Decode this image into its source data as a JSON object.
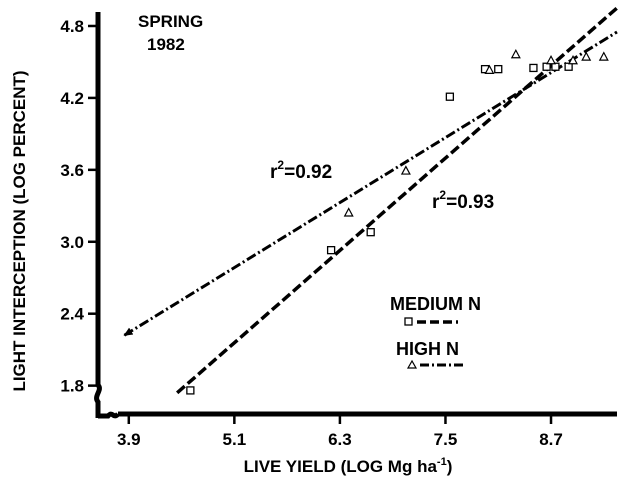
{
  "chart_data": {
    "type": "scatter",
    "annotation_title": [
      "SPRING",
      "1982"
    ],
    "xlabel": "LIVE YIELD (LOG Mg ha",
    "xlabel_sup": "-1",
    "xlabel_end": ")",
    "ylabel": "LIGHT INTERCEPTION (LOG PERCENT)",
    "xlim": [
      3.55,
      9.45
    ],
    "ylim": [
      1.58,
      4.95
    ],
    "x_ticks": [
      3.9,
      5.1,
      6.3,
      7.5,
      8.7
    ],
    "x_tick_labels": [
      "3.9",
      "5.1",
      "6.3",
      "7.5",
      "8.7"
    ],
    "y_ticks": [
      1.8,
      2.4,
      3.0,
      3.6,
      4.2,
      4.8
    ],
    "y_tick_labels": [
      "1.8",
      "2.4",
      "3.0",
      "3.6",
      "4.2",
      "4.8"
    ],
    "legend": [
      {
        "label": "MEDIUM N",
        "marker": "square",
        "line": "dashed"
      },
      {
        "label": "HIGH N",
        "marker": "triangle",
        "line": "dash-dot"
      }
    ],
    "series": [
      {
        "name": "MEDIUM N",
        "marker": "square",
        "points": [
          [
            4.6,
            1.76
          ],
          [
            6.2,
            2.93
          ],
          [
            6.65,
            3.08
          ],
          [
            7.55,
            4.21
          ],
          [
            7.95,
            4.44
          ],
          [
            8.1,
            4.44
          ],
          [
            8.5,
            4.45
          ],
          [
            8.65,
            4.46
          ],
          [
            8.75,
            4.46
          ],
          [
            8.9,
            4.46
          ]
        ],
        "fit": {
          "x": [
            4.45,
            9.45
          ],
          "y": [
            1.74,
            4.95
          ],
          "r2_label": "r",
          "r2_sup": "2",
          "r2_value": "=0.93"
        }
      },
      {
        "name": "HIGH N",
        "marker": "triangle",
        "points": [
          [
            6.4,
            3.24
          ],
          [
            7.05,
            3.59
          ],
          [
            8.0,
            4.43
          ],
          [
            8.3,
            4.56
          ],
          [
            8.7,
            4.51
          ],
          [
            8.95,
            4.51
          ],
          [
            9.1,
            4.54
          ],
          [
            9.3,
            4.54
          ]
        ],
        "fit": {
          "x": [
            3.85,
            9.45
          ],
          "y": [
            2.22,
            4.75
          ],
          "r2_label": "r",
          "r2_sup": "2",
          "r2_value": "=0.92"
        }
      }
    ],
    "colors": {
      "ink": "#000000",
      "background": "#ffffff"
    }
  }
}
